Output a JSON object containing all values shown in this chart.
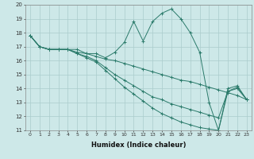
{
  "xlabel": "Humidex (Indice chaleur)",
  "xlim": [
    -0.5,
    23.5
  ],
  "ylim": [
    11,
    20
  ],
  "yticks": [
    11,
    12,
    13,
    14,
    15,
    16,
    17,
    18,
    19,
    20
  ],
  "xticks": [
    0,
    1,
    2,
    3,
    4,
    5,
    6,
    7,
    8,
    9,
    10,
    11,
    12,
    13,
    14,
    15,
    16,
    17,
    18,
    19,
    20,
    21,
    22,
    23
  ],
  "bg_color": "#cde8e8",
  "grid_color": "#aacccc",
  "line_color": "#2a7a6a",
  "series": [
    {
      "x": [
        0,
        1,
        2,
        3,
        4,
        5,
        6,
        7,
        8,
        9,
        10,
        11,
        12,
        13,
        14,
        15,
        16,
        17,
        18,
        19,
        20,
        21,
        22,
        23
      ],
      "y": [
        17.8,
        17.0,
        16.8,
        16.8,
        16.8,
        16.8,
        16.5,
        16.5,
        16.2,
        16.6,
        17.3,
        18.8,
        17.4,
        18.8,
        19.4,
        19.7,
        19.0,
        18.0,
        16.6,
        13.0,
        11.0,
        14.0,
        14.2,
        13.2
      ]
    },
    {
      "x": [
        0,
        1,
        2,
        3,
        4,
        5,
        6,
        7,
        8,
        9,
        10,
        11,
        12,
        13,
        14,
        15,
        16,
        17,
        18,
        19,
        20,
        21,
        22,
        23
      ],
      "y": [
        17.8,
        17.0,
        16.8,
        16.8,
        16.8,
        16.6,
        16.5,
        16.3,
        16.1,
        16.0,
        15.8,
        15.6,
        15.4,
        15.2,
        15.0,
        14.8,
        14.6,
        14.5,
        14.3,
        14.1,
        13.9,
        13.7,
        13.5,
        13.2
      ]
    },
    {
      "x": [
        0,
        1,
        2,
        3,
        4,
        5,
        6,
        7,
        8,
        9,
        10,
        11,
        12,
        13,
        14,
        15,
        16,
        17,
        18,
        19,
        20,
        21,
        22,
        23
      ],
      "y": [
        17.8,
        17.0,
        16.8,
        16.8,
        16.8,
        16.5,
        16.3,
        16.0,
        15.5,
        15.0,
        14.6,
        14.2,
        13.8,
        13.4,
        13.2,
        12.9,
        12.7,
        12.5,
        12.3,
        12.1,
        11.9,
        13.8,
        14.1,
        13.2
      ]
    },
    {
      "x": [
        0,
        1,
        2,
        3,
        4,
        5,
        6,
        7,
        8,
        9,
        10,
        11,
        12,
        13,
        14,
        15,
        16,
        17,
        18,
        19,
        20,
        21,
        22,
        23
      ],
      "y": [
        17.8,
        17.0,
        16.8,
        16.8,
        16.8,
        16.5,
        16.2,
        15.9,
        15.3,
        14.7,
        14.1,
        13.6,
        13.1,
        12.6,
        12.2,
        11.9,
        11.6,
        11.4,
        11.2,
        11.1,
        11.0,
        13.8,
        14.0,
        13.2
      ]
    }
  ]
}
